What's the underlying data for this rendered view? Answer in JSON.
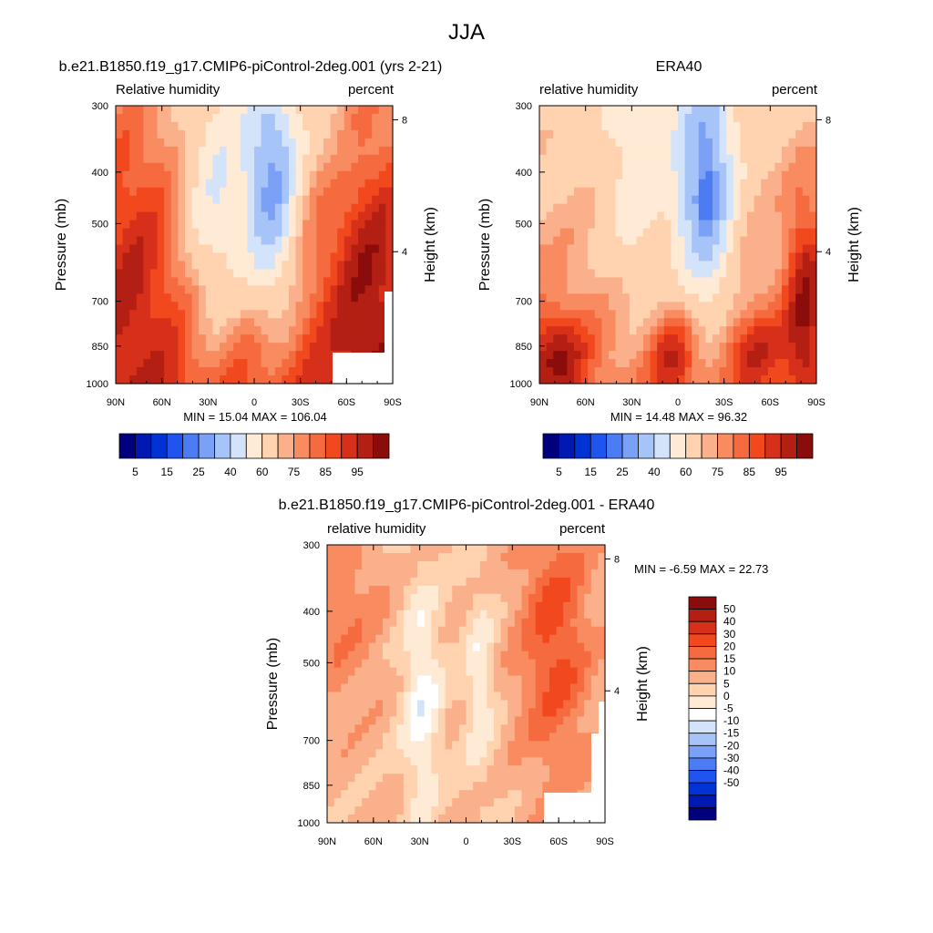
{
  "figure": {
    "title": "JJA"
  },
  "colorbars": {
    "absolute": {
      "colors": [
        "#00007f",
        "#0019b2",
        "#0033d6",
        "#1f55ee",
        "#4b7cf4",
        "#7aa1f6",
        "#a7c4f8",
        "#d3e3fa",
        "#ffead5",
        "#ffd2b0",
        "#fbb08c",
        "#f98b60",
        "#f56b3f",
        "#f1481e",
        "#d7301a",
        "#b41f14",
        "#8a0d0c"
      ],
      "labels": [
        "5",
        "15",
        "25",
        "40",
        "60",
        "75",
        "85",
        "95"
      ]
    },
    "difference": {
      "colors": [
        "#8a0d0c",
        "#b41f14",
        "#d7301a",
        "#f1481e",
        "#f56b3f",
        "#f98b60",
        "#fbb08c",
        "#ffd2b0",
        "#ffead5",
        "#ffffff",
        "#d3e3fa",
        "#a7c4f8",
        "#7aa1f6",
        "#4b7cf4",
        "#1f55ee",
        "#0033d6",
        "#0019b2",
        "#00007f"
      ],
      "labels": [
        "50",
        "40",
        "30",
        "20",
        "15",
        "10",
        "5",
        "0",
        "-5",
        "-10",
        "-15",
        "-20",
        "-30",
        "-40",
        "-50"
      ]
    }
  },
  "chart_data": [
    {
      "type": "heatmap",
      "title": "b.e21.B1850.f19_g17.CMIP6-piControl-2deg.001 (yrs 2-21)",
      "left_label": "Relative humidity",
      "right_label": "percent",
      "ylabel": "Pressure (mb)",
      "ylabel_right": "Height (km)",
      "x_ticks": [
        "90N",
        "60N",
        "30N",
        "0",
        "30S",
        "60S",
        "90S"
      ],
      "y_ticks": [
        "300",
        "400",
        "500",
        "700",
        "850",
        "1000"
      ],
      "height_ticks": [
        "8",
        "4"
      ],
      "stats": "MIN =  15.04  MAX = 106.04",
      "min": 15.04,
      "max": 106.04
    },
    {
      "type": "heatmap",
      "title": "ERA40",
      "left_label": "relative humidity",
      "right_label": "percent",
      "ylabel": "Pressure (mb)",
      "ylabel_right": "Height (km)",
      "x_ticks": [
        "90N",
        "60N",
        "30N",
        "0",
        "30S",
        "60S",
        "90S"
      ],
      "y_ticks": [
        "300",
        "400",
        "500",
        "700",
        "850",
        "1000"
      ],
      "height_ticks": [
        "8",
        "4"
      ],
      "stats": "MIN =  14.48  MAX =  96.32",
      "min": 14.48,
      "max": 96.32
    },
    {
      "type": "heatmap",
      "title": "b.e21.B1850.f19_g17.CMIP6-piControl-2deg.001 - ERA40",
      "left_label": "relative humidity",
      "right_label": "percent",
      "ylabel": "Pressure (mb)",
      "ylabel_right": "Height (km)",
      "x_ticks": [
        "90N",
        "60N",
        "30N",
        "0",
        "30S",
        "60S",
        "90S"
      ],
      "y_ticks": [
        "300",
        "400",
        "500",
        "700",
        "850",
        "1000"
      ],
      "height_ticks": [
        "8",
        "4"
      ],
      "stats": "MIN =  -6.59  MAX =  22.73",
      "min": -6.59,
      "max": 22.73
    }
  ]
}
